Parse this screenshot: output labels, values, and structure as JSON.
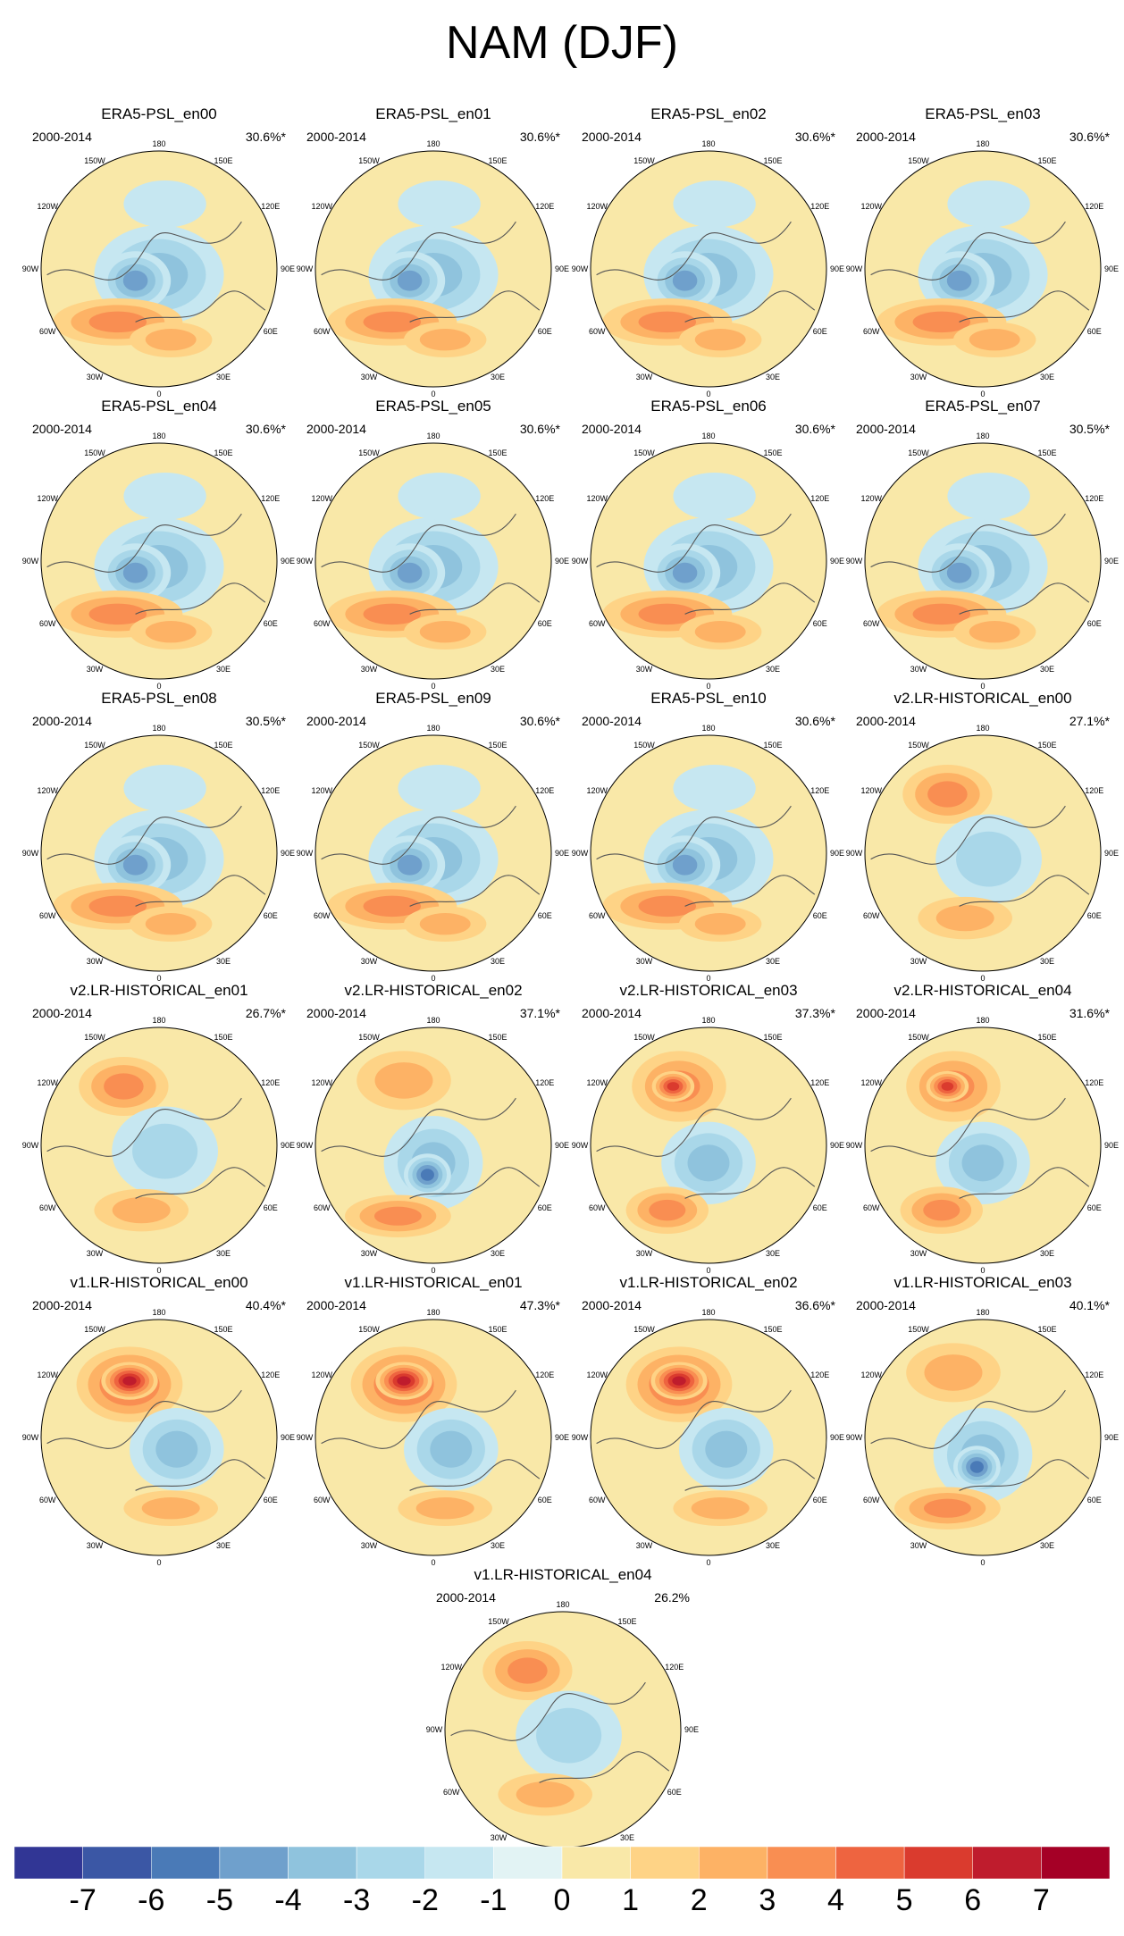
{
  "title": "NAM (DJF)",
  "period": "2000-2014",
  "longitude_labels": [
    "180",
    "150E",
    "120E",
    "90E",
    "60E",
    "30E",
    "0",
    "30W",
    "60W",
    "90W",
    "120W",
    "150W"
  ],
  "panels": [
    {
      "name": "ERA5-PSL_en00",
      "pct": "30.6%*",
      "pattern": "era5"
    },
    {
      "name": "ERA5-PSL_en01",
      "pct": "30.6%*",
      "pattern": "era5"
    },
    {
      "name": "ERA5-PSL_en02",
      "pct": "30.6%*",
      "pattern": "era5"
    },
    {
      "name": "ERA5-PSL_en03",
      "pct": "30.6%*",
      "pattern": "era5"
    },
    {
      "name": "ERA5-PSL_en04",
      "pct": "30.6%*",
      "pattern": "era5"
    },
    {
      "name": "ERA5-PSL_en05",
      "pct": "30.6%*",
      "pattern": "era5"
    },
    {
      "name": "ERA5-PSL_en06",
      "pct": "30.6%*",
      "pattern": "era5"
    },
    {
      "name": "ERA5-PSL_en07",
      "pct": "30.5%*",
      "pattern": "era5"
    },
    {
      "name": "ERA5-PSL_en08",
      "pct": "30.5%*",
      "pattern": "era5"
    },
    {
      "name": "ERA5-PSL_en09",
      "pct": "30.6%*",
      "pattern": "era5"
    },
    {
      "name": "ERA5-PSL_en10",
      "pct": "30.6%*",
      "pattern": "era5"
    },
    {
      "name": "v2.LR-HISTORICAL_en00",
      "pct": "27.1%*",
      "pattern": "model-weak"
    },
    {
      "name": "v2.LR-HISTORICAL_en01",
      "pct": "26.7%*",
      "pattern": "model-weak"
    },
    {
      "name": "v2.LR-HISTORICAL_en02",
      "pct": "37.1%*",
      "pattern": "model-atl"
    },
    {
      "name": "v2.LR-HISTORICAL_en03",
      "pct": "37.3%*",
      "pattern": "model-pac"
    },
    {
      "name": "v2.LR-HISTORICAL_en04",
      "pct": "31.6%*",
      "pattern": "model-pac"
    },
    {
      "name": "v1.LR-HISTORICAL_en00",
      "pct": "40.4%*",
      "pattern": "model-strong"
    },
    {
      "name": "v1.LR-HISTORICAL_en01",
      "pct": "47.3%*",
      "pattern": "model-strong"
    },
    {
      "name": "v1.LR-HISTORICAL_en02",
      "pct": "36.6%*",
      "pattern": "model-strong"
    },
    {
      "name": "v1.LR-HISTORICAL_en03",
      "pct": "40.1%*",
      "pattern": "model-atl"
    },
    {
      "name": "v1.LR-HISTORICAL_en04",
      "pct": "26.2%",
      "pattern": "model-weak"
    }
  ],
  "chart_data": {
    "type": "heatmap",
    "title": "NAM (DJF)",
    "colorbar": {
      "ticks": [
        "-7",
        "-6",
        "-5",
        "-4",
        "-3",
        "-2",
        "-1",
        "0",
        "1",
        "2",
        "3",
        "4",
        "5",
        "6",
        "7"
      ],
      "colors": [
        "#313695",
        "#3b57a5",
        "#4a7ab7",
        "#6fa0cc",
        "#8fc3dd",
        "#a9d7e9",
        "#c6e7f1",
        "#e2f3f4",
        "#f9e8a8",
        "#fed386",
        "#fdb265",
        "#f98e52",
        "#ee6440",
        "#da3b2e",
        "#bf1c2d",
        "#a50026"
      ]
    }
  }
}
